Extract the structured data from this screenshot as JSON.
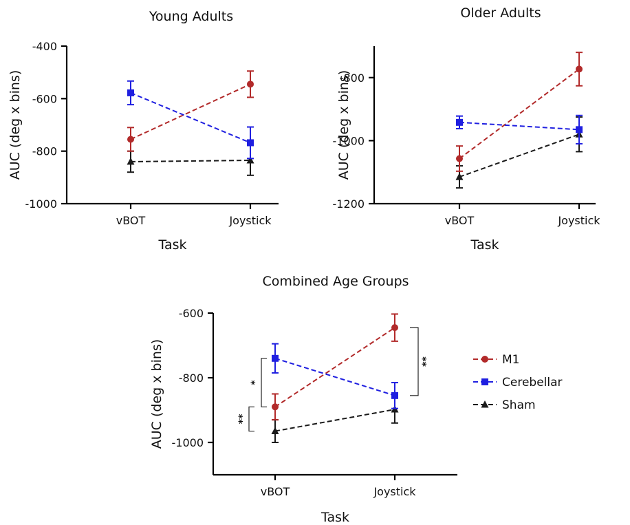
{
  "colors": {
    "M1": "#b22a2a",
    "Cerebellar": "#1f1fe0",
    "Sham": "#1a1a1a"
  },
  "legend": [
    {
      "name": "M1",
      "marker": "circle"
    },
    {
      "name": "Cerebellar",
      "marker": "square"
    },
    {
      "name": "Sham",
      "marker": "triangle"
    }
  ],
  "chart_data": [
    {
      "type": "line",
      "title": "Young Adults",
      "xlabel": "Task",
      "ylabel": "AUC (deg x bins)",
      "categories": [
        "vBOT",
        "Joystick"
      ],
      "ylim": [
        -1000,
        -400
      ],
      "yticks": [
        -1000,
        -800,
        -600,
        -400
      ],
      "series": [
        {
          "name": "M1",
          "values": [
            -755,
            -545
          ],
          "err": [
            45,
            50
          ]
        },
        {
          "name": "Cerebellar",
          "values": [
            -578,
            -768
          ],
          "err": [
            45,
            60
          ]
        },
        {
          "name": "Sham",
          "values": [
            -840,
            -835
          ],
          "err": [
            40,
            57
          ]
        }
      ]
    },
    {
      "type": "line",
      "title": "Older Adults",
      "xlabel": "Task",
      "ylabel": "AUC (deg x bins)",
      "categories": [
        "vBOT",
        "Joystick"
      ],
      "ylim": [
        -1200,
        -700
      ],
      "yticks": [
        -1200,
        -1000,
        -800
      ],
      "series": [
        {
          "name": "M1",
          "values": [
            -1057,
            -773
          ],
          "err": [
            40,
            53
          ]
        },
        {
          "name": "Cerebellar",
          "values": [
            -942,
            -965
          ],
          "err": [
            20,
            45
          ]
        },
        {
          "name": "Sham",
          "values": [
            -1115,
            -980
          ],
          "err": [
            35,
            55
          ]
        }
      ]
    },
    {
      "type": "line",
      "title": "Combined Age Groups",
      "xlabel": "Task",
      "ylabel": "AUC (deg x bins)",
      "categories": [
        "vBOT",
        "Joystick"
      ],
      "ylim": [
        -1100,
        -600
      ],
      "yticks": [
        -1000,
        -800,
        -600
      ],
      "series": [
        {
          "name": "M1",
          "values": [
            -890,
            -645
          ],
          "err": [
            40,
            42
          ]
        },
        {
          "name": "Cerebellar",
          "values": [
            -740,
            -855
          ],
          "err": [
            45,
            40
          ]
        },
        {
          "name": "Sham",
          "values": [
            -965,
            -898
          ],
          "err": [
            35,
            42
          ]
        }
      ],
      "annotations": [
        {
          "label": "**",
          "between": [
            "M1",
            "Sham"
          ],
          "category": "vBOT",
          "side": "left"
        },
        {
          "label": "*",
          "between": [
            "Cerebellar",
            "M1"
          ],
          "category": "vBOT",
          "side": "left"
        },
        {
          "label": "**",
          "between": [
            "M1",
            "Cerebellar"
          ],
          "category": "Joystick",
          "side": "right"
        }
      ]
    }
  ]
}
